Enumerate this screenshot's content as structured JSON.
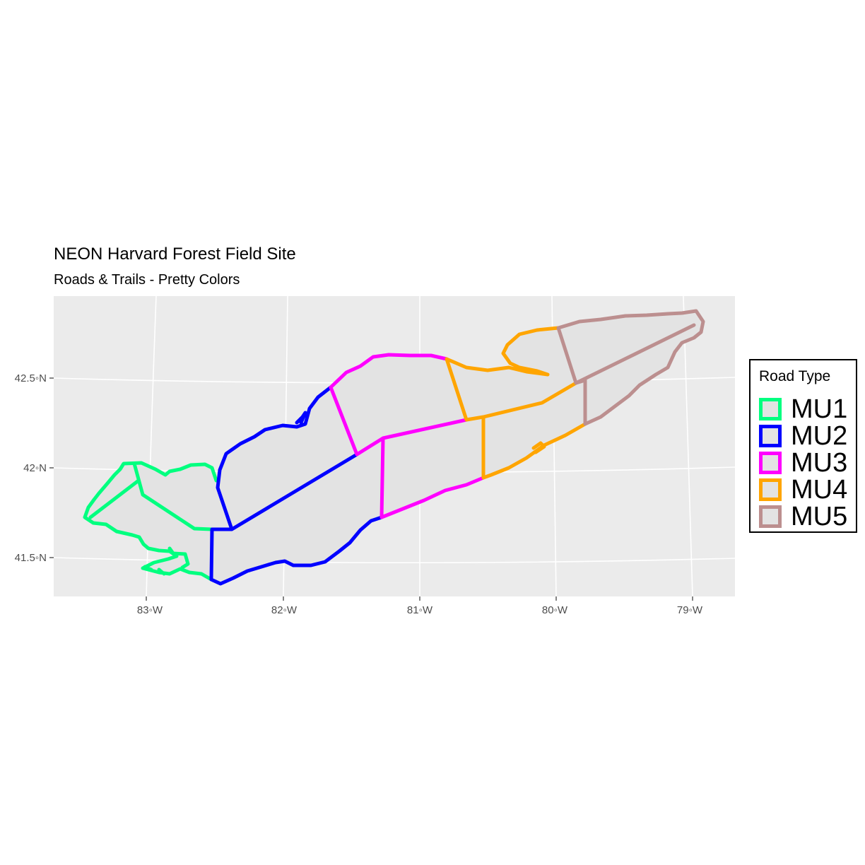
{
  "title": "NEON Harvard Forest Field Site",
  "subtitle": "Roads & Trails - Pretty Colors",
  "map": {
    "x_ticks": [
      "83◦W",
      "82◦W",
      "81◦W",
      "80◦W",
      "79◦W"
    ],
    "y_ticks": [
      "42.5◦N",
      "42◦N",
      "41.5◦N"
    ],
    "panel_background": "#ebebeb",
    "gridline_color": "#ffffff",
    "fill_color": "#e3e3e3"
  },
  "legend": {
    "title": "Road Type",
    "items": [
      {
        "label": "MU1",
        "color": "#00ff7f"
      },
      {
        "label": "MU2",
        "color": "#0000ff"
      },
      {
        "label": "MU3",
        "color": "#ff00ff"
      },
      {
        "label": "MU4",
        "color": "#ffa500"
      },
      {
        "label": "MU5",
        "color": "#bc8f8f"
      }
    ]
  }
}
